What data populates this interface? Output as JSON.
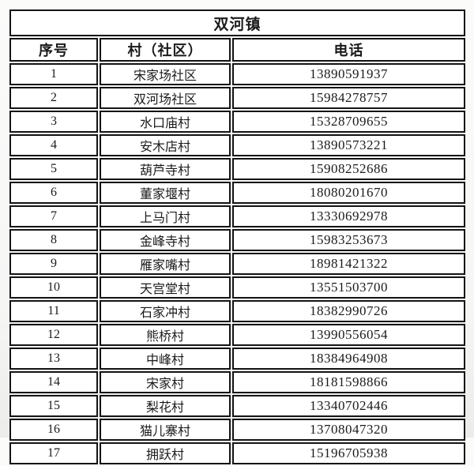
{
  "table": {
    "title": "双河镇",
    "columns": [
      "序号",
      "村（社区）",
      "电话"
    ],
    "rows": [
      {
        "no": "1",
        "village": "宋家场社区",
        "phone": "13890591937"
      },
      {
        "no": "2",
        "village": "双河场社区",
        "phone": "15984278757"
      },
      {
        "no": "3",
        "village": "水口庙村",
        "phone": "15328709655"
      },
      {
        "no": "4",
        "village": "安木店村",
        "phone": "13890573221"
      },
      {
        "no": "5",
        "village": "葫芦寺村",
        "phone": "15908252686"
      },
      {
        "no": "6",
        "village": "董家堰村",
        "phone": "18080201670"
      },
      {
        "no": "7",
        "village": "上马门村",
        "phone": "13330692978"
      },
      {
        "no": "8",
        "village": "金峰寺村",
        "phone": "15983253673"
      },
      {
        "no": "9",
        "village": "雁家嘴村",
        "phone": "18981421322"
      },
      {
        "no": "10",
        "village": "天宫堂村",
        "phone": "13551503700"
      },
      {
        "no": "11",
        "village": "石家冲村",
        "phone": "18382990726"
      },
      {
        "no": "12",
        "village": "熊桥村",
        "phone": "13990556054"
      },
      {
        "no": "13",
        "village": "中峰村",
        "phone": "18384964908"
      },
      {
        "no": "14",
        "village": "宋家村",
        "phone": "18181598866"
      },
      {
        "no": "15",
        "village": "梨花村",
        "phone": "13340702446"
      },
      {
        "no": "16",
        "village": "猫儿寨村",
        "phone": "13708047320"
      },
      {
        "no": "17",
        "village": "拥跃村",
        "phone": "15196705938"
      }
    ],
    "border_color": "#141414",
    "cell_background": "#ffffff"
  }
}
